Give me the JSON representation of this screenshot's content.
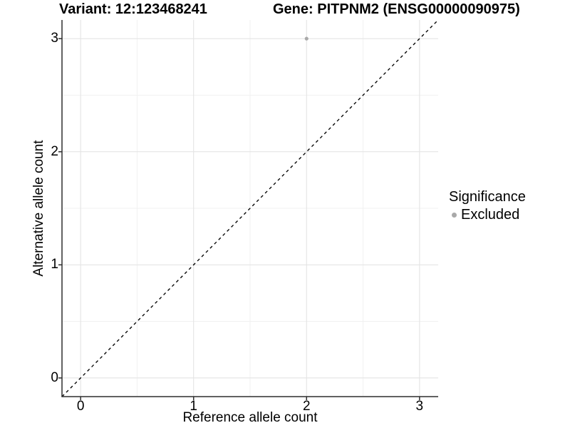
{
  "chart_data": {
    "type": "scatter",
    "title_left": "Variant: 12:123468241",
    "title_right": "Gene: PITPNM2 (ENSG00000090975)",
    "xlabel": "Reference allele count",
    "ylabel": "Alternative allele count",
    "xlim": [
      -0.165,
      3.165
    ],
    "ylim": [
      -0.165,
      3.165
    ],
    "x_ticks": [
      0,
      1,
      2,
      3
    ],
    "y_ticks": [
      0,
      1,
      2,
      3
    ],
    "x_minor_ticks": [
      0.5,
      1.5,
      2.5
    ],
    "y_minor_ticks": [
      0.5,
      1.5,
      2.5
    ],
    "grid": "major and minor, light gray on white",
    "abline": {
      "slope": 1,
      "intercept": 0,
      "style": "dashed",
      "color": "#000000"
    },
    "series": [
      {
        "name": "Excluded",
        "color": "#a9a9a9",
        "points": [
          {
            "x": 2,
            "y": 3
          }
        ]
      }
    ],
    "legend": {
      "title": "Significance",
      "position": "right",
      "items": [
        {
          "label": "Excluded",
          "color": "#a9a9a9"
        }
      ]
    }
  }
}
